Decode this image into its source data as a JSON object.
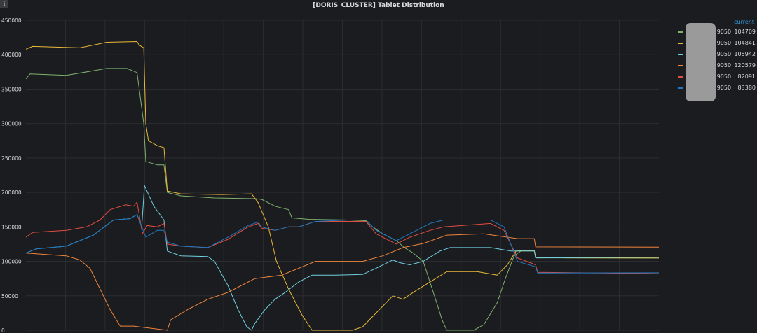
{
  "panel": {
    "info_icon": "i"
  },
  "chart_data": {
    "type": "line",
    "title": "[DORIS_CLUSTER] Tablet Distribution",
    "xlabel": "",
    "ylabel": "",
    "ylim": [
      0,
      450000
    ],
    "yticks": [
      0,
      50000,
      100000,
      150000,
      200000,
      250000,
      300000,
      350000,
      400000,
      450000
    ],
    "grid": true,
    "legend": "right",
    "legend_header": "current",
    "series": [
      {
        "host_suffix": ":9050",
        "current": "104709",
        "color": "#7eb26d",
        "points": [
          [
            0,
            365000
          ],
          [
            6,
            372000
          ],
          [
            60,
            370000
          ],
          [
            120,
            380000
          ],
          [
            150,
            380000
          ],
          [
            165,
            374000
          ],
          [
            175,
            300000
          ],
          [
            178,
            245000
          ],
          [
            195,
            240000
          ],
          [
            205,
            240000
          ],
          [
            210,
            200000
          ],
          [
            230,
            195000
          ],
          [
            280,
            192000
          ],
          [
            340,
            191000
          ],
          [
            350,
            190000
          ],
          [
            370,
            180000
          ],
          [
            390,
            175000
          ],
          [
            395,
            163000
          ],
          [
            420,
            161000
          ],
          [
            480,
            160000
          ],
          [
            505,
            159000
          ],
          [
            515,
            150000
          ],
          [
            530,
            140000
          ],
          [
            550,
            130000
          ],
          [
            562,
            120000
          ],
          [
            575,
            112000
          ],
          [
            590,
            100000
          ],
          [
            600,
            70000
          ],
          [
            610,
            40000
          ],
          [
            618,
            15000
          ],
          [
            625,
            0
          ],
          [
            665,
            0
          ],
          [
            680,
            8000
          ],
          [
            700,
            40000
          ],
          [
            712,
            75000
          ],
          [
            725,
            108000
          ],
          [
            735,
            115000
          ],
          [
            755,
            115000
          ],
          [
            757,
            105000
          ],
          [
            800,
            105000
          ],
          [
            940,
            104709
          ]
        ]
      },
      {
        "host_suffix": ":9050",
        "current": "104841",
        "color": "#eab839",
        "points": [
          [
            0,
            408000
          ],
          [
            10,
            412000
          ],
          [
            80,
            410000
          ],
          [
            120,
            418000
          ],
          [
            165,
            419000
          ],
          [
            168,
            414000
          ],
          [
            175,
            410000
          ],
          [
            178,
            300000
          ],
          [
            182,
            275000
          ],
          [
            195,
            268000
          ],
          [
            205,
            265000
          ],
          [
            210,
            202000
          ],
          [
            230,
            198000
          ],
          [
            290,
            197000
          ],
          [
            335,
            198000
          ],
          [
            345,
            185000
          ],
          [
            360,
            150000
          ],
          [
            372,
            100000
          ],
          [
            390,
            60000
          ],
          [
            410,
            22000
          ],
          [
            425,
            0
          ],
          [
            485,
            0
          ],
          [
            500,
            5000
          ],
          [
            520,
            25000
          ],
          [
            545,
            50000
          ],
          [
            560,
            45000
          ],
          [
            575,
            55000
          ],
          [
            600,
            70000
          ],
          [
            625,
            85000
          ],
          [
            670,
            85000
          ],
          [
            700,
            80000
          ],
          [
            715,
            95000
          ],
          [
            728,
            115000
          ],
          [
            755,
            116000
          ],
          [
            757,
            106000
          ],
          [
            800,
            105000
          ],
          [
            940,
            104841
          ]
        ]
      },
      {
        "host_suffix": ":9050",
        "current": "105942",
        "color": "#6ed0e0",
        "points": [
          [
            0,
            112000
          ],
          [
            15,
            118000
          ],
          [
            60,
            122000
          ],
          [
            100,
            138000
          ],
          [
            130,
            160000
          ],
          [
            155,
            162000
          ],
          [
            165,
            168000
          ],
          [
            172,
            150000
          ],
          [
            176,
            210000
          ],
          [
            190,
            180000
          ],
          [
            205,
            160000
          ],
          [
            210,
            115000
          ],
          [
            230,
            108000
          ],
          [
            270,
            107000
          ],
          [
            280,
            100000
          ],
          [
            300,
            65000
          ],
          [
            315,
            30000
          ],
          [
            328,
            5000
          ],
          [
            335,
            0
          ],
          [
            340,
            10000
          ],
          [
            355,
            30000
          ],
          [
            370,
            45000
          ],
          [
            385,
            55000
          ],
          [
            405,
            70000
          ],
          [
            425,
            80000
          ],
          [
            460,
            80000
          ],
          [
            500,
            81000
          ],
          [
            520,
            90000
          ],
          [
            545,
            102000
          ],
          [
            555,
            98000
          ],
          [
            570,
            95000
          ],
          [
            590,
            100000
          ],
          [
            615,
            115000
          ],
          [
            630,
            120000
          ],
          [
            690,
            120000
          ],
          [
            720,
            115000
          ],
          [
            755,
            115000
          ],
          [
            757,
            105000
          ],
          [
            940,
            105942
          ]
        ]
      },
      {
        "host_suffix": ":9050",
        "current": "120579",
        "color": "#ef843c",
        "points": [
          [
            0,
            112000
          ],
          [
            60,
            108000
          ],
          [
            80,
            102000
          ],
          [
            95,
            90000
          ],
          [
            110,
            60000
          ],
          [
            125,
            30000
          ],
          [
            140,
            6000
          ],
          [
            160,
            6000
          ],
          [
            210,
            0
          ],
          [
            215,
            15000
          ],
          [
            240,
            30000
          ],
          [
            270,
            45000
          ],
          [
            300,
            55000
          ],
          [
            320,
            65000
          ],
          [
            340,
            75000
          ],
          [
            380,
            80000
          ],
          [
            400,
            88000
          ],
          [
            430,
            100000
          ],
          [
            500,
            100000
          ],
          [
            530,
            108000
          ],
          [
            560,
            120000
          ],
          [
            590,
            126000
          ],
          [
            625,
            138000
          ],
          [
            680,
            140000
          ],
          [
            730,
            133000
          ],
          [
            755,
            133000
          ],
          [
            757,
            121000
          ],
          [
            940,
            120579
          ]
        ]
      },
      {
        "host_suffix": ":9050",
        "current": "82091",
        "color": "#e24d42",
        "points": [
          [
            0,
            135000
          ],
          [
            10,
            142000
          ],
          [
            60,
            145000
          ],
          [
            90,
            150000
          ],
          [
            110,
            160000
          ],
          [
            125,
            175000
          ],
          [
            148,
            182000
          ],
          [
            160,
            180000
          ],
          [
            165,
            186000
          ],
          [
            173,
            140000
          ],
          [
            180,
            152000
          ],
          [
            195,
            150000
          ],
          [
            205,
            155000
          ],
          [
            210,
            125000
          ],
          [
            230,
            122000
          ],
          [
            270,
            120000
          ],
          [
            300,
            132000
          ],
          [
            330,
            150000
          ],
          [
            345,
            155000
          ],
          [
            350,
            148000
          ],
          [
            370,
            145000
          ],
          [
            390,
            150000
          ],
          [
            405,
            150000
          ],
          [
            430,
            158000
          ],
          [
            480,
            158000
          ],
          [
            505,
            158000
          ],
          [
            520,
            140000
          ],
          [
            550,
            125000
          ],
          [
            570,
            135000
          ],
          [
            600,
            145000
          ],
          [
            620,
            150000
          ],
          [
            690,
            155000
          ],
          [
            710,
            145000
          ],
          [
            730,
            105000
          ],
          [
            757,
            95000
          ],
          [
            760,
            84000
          ],
          [
            940,
            82091
          ]
        ]
      },
      {
        "host_suffix": ":9050",
        "current": "83380",
        "color": "#1f78c1",
        "points": [
          [
            0,
            112000
          ],
          [
            15,
            118000
          ],
          [
            60,
            122000
          ],
          [
            100,
            138000
          ],
          [
            130,
            160000
          ],
          [
            155,
            162000
          ],
          [
            165,
            168000
          ],
          [
            178,
            135000
          ],
          [
            195,
            145000
          ],
          [
            205,
            145000
          ],
          [
            210,
            128000
          ],
          [
            230,
            122000
          ],
          [
            270,
            120000
          ],
          [
            300,
            135000
          ],
          [
            330,
            152000
          ],
          [
            345,
            157000
          ],
          [
            350,
            150000
          ],
          [
            370,
            145000
          ],
          [
            390,
            150000
          ],
          [
            405,
            150000
          ],
          [
            430,
            158000
          ],
          [
            480,
            160000
          ],
          [
            505,
            160000
          ],
          [
            520,
            145000
          ],
          [
            550,
            130000
          ],
          [
            570,
            140000
          ],
          [
            600,
            155000
          ],
          [
            620,
            160000
          ],
          [
            690,
            160000
          ],
          [
            710,
            150000
          ],
          [
            730,
            100000
          ],
          [
            757,
            92000
          ],
          [
            760,
            83000
          ],
          [
            940,
            83380
          ]
        ]
      }
    ]
  }
}
